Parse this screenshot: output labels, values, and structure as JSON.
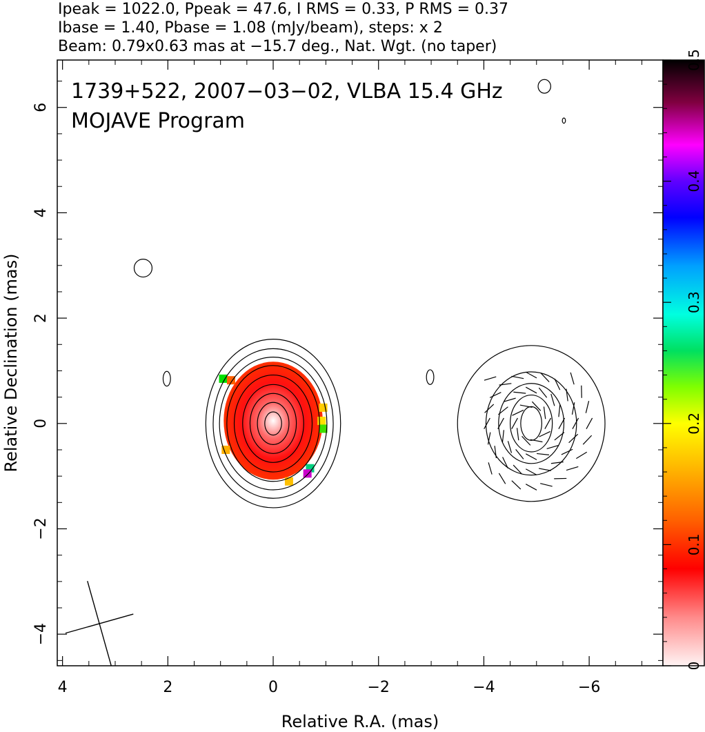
{
  "header": {
    "line1": "Ipeak = 1022.0, Ppeak = 47.6, I RMS = 0.33, P RMS = 0.37",
    "line2": "Ibase = 1.40, Pbase = 1.08 (mJy/beam), steps: x 2",
    "line3": "Beam: 0.79x0.63 mas at −15.7 deg., Nat. Wgt. (no taper)"
  },
  "chart_data": [
    {
      "type": "heatmap",
      "title": "1739+522, 2007−03−02, VLBA 15.4 GHz",
      "subtitle": "MOJAVE Program",
      "xlabel": "Relative R.A. (mas)",
      "ylabel": "Relative Declination (mas)",
      "xlim": [
        4.1,
        -7.4
      ],
      "ylim": [
        -4.6,
        6.9
      ],
      "x_ticks": [
        4,
        2,
        0,
        -2,
        -4,
        -6
      ],
      "x_tick_labels": [
        "4",
        "2",
        "0",
        "−2",
        "−4",
        "−6"
      ],
      "y_ticks": [
        -4,
        -2,
        0,
        2,
        4,
        6
      ],
      "y_tick_labels": [
        "−4",
        "−2",
        "0",
        "2",
        "4",
        "6"
      ],
      "colorbar": {
        "range": [
          0,
          0.5
        ],
        "ticks": [
          0,
          0.1,
          0.2,
          0.3,
          0.4,
          0.5
        ],
        "tick_labels": [
          "0",
          "0.1",
          "0.2",
          "0.3",
          "0.4",
          "0.5"
        ],
        "colors": [
          "#fff4f4",
          "#ff8a8a",
          "#ff0000",
          "#ff6000",
          "#ffb000",
          "#ffff00",
          "#80ff00",
          "#00e060",
          "#00ffe0",
          "#00a0ff",
          "#0000ff",
          "#6000ff",
          "#ff00ff",
          "#800040",
          "#000000"
        ]
      },
      "left_panel": {
        "center": [
          0.0,
          0.0
        ],
        "fractional_polarization": 0.06,
        "contours": [
          {
            "name": "c1",
            "rx": 1.28,
            "ry": 1.6
          },
          {
            "name": "c2",
            "rx": 1.14,
            "ry": 1.42
          },
          {
            "name": "c3",
            "rx": 1.02,
            "ry": 1.26
          },
          {
            "name": "c4",
            "rx": 0.88,
            "ry": 1.1
          },
          {
            "name": "c5",
            "rx": 0.74,
            "ry": 0.92
          },
          {
            "name": "c6",
            "rx": 0.58,
            "ry": 0.74
          },
          {
            "name": "c7",
            "rx": 0.44,
            "ry": 0.57
          },
          {
            "name": "c8",
            "rx": 0.3,
            "ry": 0.4
          },
          {
            "name": "c9",
            "rx": 0.16,
            "ry": 0.22
          }
        ]
      },
      "right_panel": {
        "center": [
          -4.9,
          0.0
        ],
        "contours": [
          {
            "name": "r1",
            "rx": 1.4,
            "ry": 1.48
          },
          {
            "name": "r2",
            "rx": 0.86,
            "ry": 0.98
          },
          {
            "name": "r3",
            "rx": 0.62,
            "ry": 0.76
          },
          {
            "name": "r4",
            "rx": 0.4,
            "ry": 0.54
          },
          {
            "name": "r5",
            "rx": 0.2,
            "ry": 0.32
          }
        ]
      },
      "noise_islands": [
        {
          "x": 2.47,
          "y": 2.95,
          "rx": 0.17,
          "ry": 0.17
        },
        {
          "x": 2.02,
          "y": 0.85,
          "rx": 0.07,
          "ry": 0.14
        },
        {
          "x": -2.98,
          "y": 0.88,
          "rx": 0.07,
          "ry": 0.14
        },
        {
          "x": -5.15,
          "y": 6.4,
          "rx": 0.12,
          "ry": 0.13
        },
        {
          "x": -5.52,
          "y": 5.75,
          "rx": 0.03,
          "ry": 0.05
        }
      ],
      "beam": {
        "x": 3.3,
        "y": -3.8,
        "major": 0.79,
        "minor": 0.63,
        "pa_deg": -15.7
      }
    }
  ]
}
